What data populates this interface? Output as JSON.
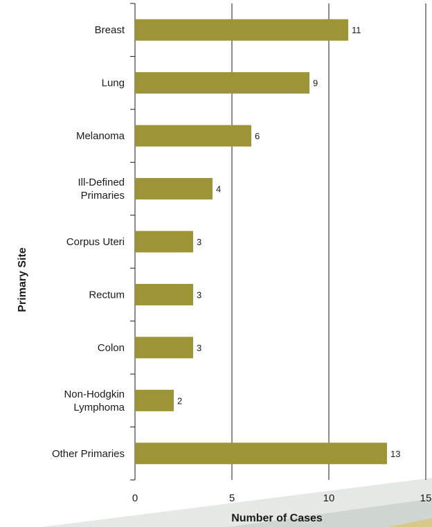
{
  "chart_data": {
    "type": "bar",
    "orientation": "horizontal",
    "categories": [
      "Breast",
      "Lung",
      "Melanoma",
      "Ill-Defined\nPrimaries",
      "Corpus Uteri",
      "Rectum",
      "Colon",
      "Non-Hodgkin\nLymphoma",
      "Other Primaries"
    ],
    "values": [
      11,
      9,
      6,
      4,
      3,
      3,
      3,
      2,
      13
    ],
    "xlabel": "Number of Cases",
    "ylabel": "Primary Site",
    "xlim": [
      0,
      15
    ],
    "xticks": [
      0,
      5,
      10,
      15
    ],
    "grid": "vertical",
    "legend": "none"
  },
  "colors": {
    "bar": "#9c9436",
    "grid": "#1a1a1a",
    "decor_light": "#e4e9e6",
    "decor_mid": "#cfd6d1",
    "decor_accent": "#d8c98a"
  }
}
